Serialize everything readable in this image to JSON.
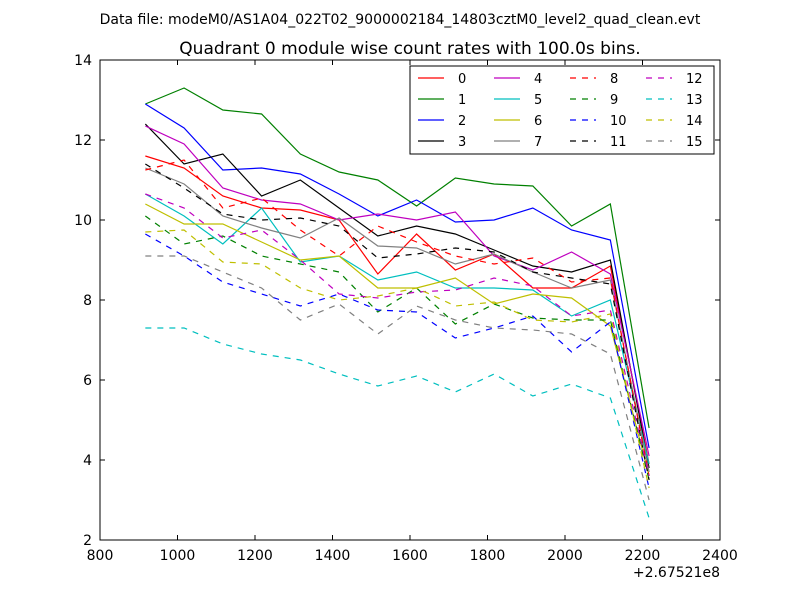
{
  "supertitle": "Data file: modeM0/AS1A04_022T02_9000002184_14803cztM0_level2_quad_clean.evt",
  "chart_data": {
    "type": "line",
    "title": "Quadrant 0 module wise count rates with 100.0s bins.",
    "xlabel": "",
    "ylabel": "",
    "x_offset_label": "+2.67521e8",
    "xlim": [
      800,
      2400
    ],
    "ylim": [
      2,
      14
    ],
    "xticks": [
      800,
      1000,
      1200,
      1400,
      1600,
      1800,
      2000,
      2200,
      2400
    ],
    "yticks": [
      2,
      4,
      6,
      8,
      10,
      12,
      14
    ],
    "grid": false,
    "legend_position": "top-right",
    "legend_columns": 4,
    "x": [
      917,
      1017,
      1117,
      1217,
      1317,
      1417,
      1517,
      1617,
      1717,
      1817,
      1917,
      2017,
      2117,
      2217
    ],
    "series": [
      {
        "name": "0",
        "color": "#ff0000",
        "dash": "solid",
        "values": [
          11.6,
          11.3,
          10.6,
          10.3,
          10.25,
          10.0,
          8.65,
          9.65,
          8.75,
          9.15,
          8.3,
          8.3,
          8.85,
          3.9
        ]
      },
      {
        "name": "1",
        "color": "#008000",
        "dash": "solid",
        "values": [
          12.9,
          13.3,
          12.75,
          12.65,
          11.65,
          11.2,
          11.0,
          10.35,
          11.05,
          10.9,
          10.85,
          9.85,
          10.4,
          4.8
        ]
      },
      {
        "name": "2",
        "color": "#0000ff",
        "dash": "solid",
        "values": [
          12.9,
          12.3,
          11.25,
          11.3,
          11.15,
          10.65,
          10.1,
          10.5,
          9.95,
          10.0,
          10.3,
          9.75,
          9.5,
          4.3
        ]
      },
      {
        "name": "3",
        "color": "#000000",
        "dash": "solid",
        "values": [
          12.4,
          11.4,
          11.65,
          10.6,
          11.0,
          10.3,
          9.6,
          9.85,
          9.65,
          9.25,
          8.85,
          8.7,
          9.0,
          3.8
        ]
      },
      {
        "name": "4",
        "color": "#bf00bf",
        "dash": "solid",
        "values": [
          12.35,
          11.9,
          10.8,
          10.5,
          10.4,
          10.0,
          10.15,
          10.0,
          10.2,
          9.1,
          8.75,
          9.2,
          8.65,
          4.1
        ]
      },
      {
        "name": "5",
        "color": "#00bfbf",
        "dash": "solid",
        "values": [
          10.65,
          10.1,
          9.4,
          10.3,
          8.95,
          9.1,
          8.5,
          8.7,
          8.3,
          8.3,
          8.25,
          7.6,
          8.0,
          3.9
        ]
      },
      {
        "name": "6",
        "color": "#bfbf00",
        "dash": "solid",
        "values": [
          10.4,
          9.9,
          9.9,
          9.45,
          9.0,
          9.1,
          8.3,
          8.3,
          8.55,
          7.9,
          8.15,
          8.05,
          7.35,
          3.6
        ]
      },
      {
        "name": "7",
        "color": "#808080",
        "dash": "solid",
        "values": [
          11.3,
          10.9,
          10.1,
          9.8,
          9.55,
          10.05,
          9.35,
          9.3,
          8.9,
          9.15,
          8.7,
          8.3,
          8.5,
          3.7
        ]
      },
      {
        "name": "8",
        "color": "#ff0000",
        "dash": "dashed",
        "values": [
          11.25,
          11.5,
          10.3,
          10.55,
          9.75,
          9.1,
          9.85,
          9.45,
          9.1,
          8.9,
          9.05,
          8.45,
          8.55,
          3.6
        ]
      },
      {
        "name": "9",
        "color": "#008000",
        "dash": "dashed",
        "values": [
          10.1,
          9.4,
          9.6,
          9.1,
          8.9,
          8.7,
          7.7,
          8.3,
          7.4,
          7.9,
          7.55,
          7.5,
          7.5,
          3.5
        ]
      },
      {
        "name": "10",
        "color": "#0000ff",
        "dash": "dashed",
        "values": [
          9.65,
          9.1,
          8.45,
          8.15,
          7.85,
          8.15,
          7.75,
          7.7,
          7.05,
          7.3,
          7.6,
          6.7,
          7.45,
          3.3
        ]
      },
      {
        "name": "11",
        "color": "#000000",
        "dash": "dashed",
        "values": [
          11.4,
          10.8,
          10.15,
          10.0,
          10.05,
          9.85,
          9.05,
          9.15,
          9.3,
          9.2,
          8.7,
          8.55,
          8.4,
          3.5
        ]
      },
      {
        "name": "12",
        "color": "#bf00bf",
        "dash": "dashed",
        "values": [
          10.65,
          10.3,
          9.55,
          9.75,
          9.0,
          8.15,
          8.05,
          8.2,
          8.25,
          8.55,
          8.35,
          7.6,
          7.75,
          3.6
        ]
      },
      {
        "name": "13",
        "color": "#00bfbf",
        "dash": "dashed",
        "values": [
          7.3,
          7.3,
          6.9,
          6.65,
          6.5,
          6.15,
          5.85,
          6.1,
          5.7,
          6.15,
          5.6,
          5.9,
          5.55,
          2.55
        ]
      },
      {
        "name": "14",
        "color": "#bfbf00",
        "dash": "dashed",
        "values": [
          9.7,
          9.75,
          8.95,
          8.9,
          8.3,
          8.0,
          8.1,
          8.3,
          7.85,
          7.95,
          7.5,
          7.45,
          7.65,
          3.3
        ]
      },
      {
        "name": "15",
        "color": "#808080",
        "dash": "dashed",
        "values": [
          9.1,
          9.1,
          8.7,
          8.3,
          7.5,
          7.9,
          7.15,
          7.85,
          7.5,
          7.3,
          7.25,
          7.15,
          6.65,
          3.0
        ]
      }
    ]
  }
}
